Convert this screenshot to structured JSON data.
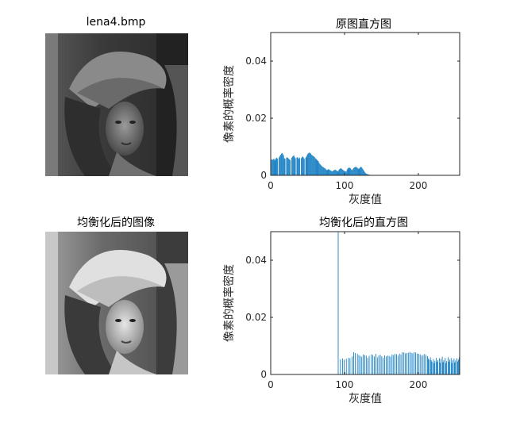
{
  "figure": {
    "subplots": [
      {
        "id": "img1",
        "title": "lena4.bmp",
        "kind": "image",
        "image": "lena-grayscale-photo"
      },
      {
        "id": "hist1",
        "title": "原图直方图",
        "kind": "histogram"
      },
      {
        "id": "img2",
        "title": "均衡化后的图像",
        "kind": "image",
        "image": "lena-equalized-photo"
      },
      {
        "id": "hist2",
        "title": "均衡化后的直方图",
        "kind": "histogram"
      }
    ]
  },
  "chart_data": [
    {
      "type": "bar",
      "title": "原图直方图",
      "xlabel": "灰度值",
      "ylabel": "像素的概率密度",
      "xlim": [
        0,
        256
      ],
      "ylim": [
        0,
        0.05
      ],
      "xticks": [
        "0",
        "100",
        "200"
      ],
      "yticks": [
        "0",
        "0.02",
        "0.04"
      ],
      "bar_color": "#0072BD",
      "x": [
        0,
        1,
        2,
        3,
        4,
        5,
        6,
        7,
        8,
        9,
        10,
        11,
        12,
        13,
        14,
        15,
        16,
        17,
        18,
        19,
        20,
        21,
        22,
        23,
        24,
        25,
        26,
        27,
        28,
        29,
        30,
        31,
        32,
        33,
        34,
        35,
        36,
        37,
        38,
        39,
        40,
        41,
        42,
        43,
        44,
        45,
        46,
        47,
        48,
        49,
        50,
        51,
        52,
        53,
        54,
        55,
        56,
        57,
        58,
        59,
        60,
        61,
        62,
        63,
        64,
        65,
        66,
        67,
        68,
        69,
        70,
        71,
        72,
        73,
        74,
        75,
        76,
        77,
        78,
        79,
        80,
        81,
        82,
        83,
        84,
        85,
        86,
        87,
        88,
        89,
        90,
        91,
        92,
        93,
        94,
        95,
        96,
        97,
        98,
        99,
        100,
        101,
        102,
        103,
        104,
        105,
        106,
        107,
        108,
        109,
        110,
        111,
        112,
        113,
        114,
        115,
        116,
        117,
        118,
        119,
        120,
        121,
        122,
        123,
        124,
        125,
        126,
        127,
        128,
        129,
        130,
        131,
        132,
        133,
        134,
        135,
        136,
        137,
        138,
        139,
        140
      ],
      "values": [
        0.0055,
        0.0056,
        0.0054,
        0.0057,
        0.0058,
        0.0052,
        0.0057,
        0.006,
        0.0062,
        0.0058,
        0.0,
        0.0063,
        0.0068,
        0.0072,
        0.0076,
        0.0078,
        0.0074,
        0.007,
        0.006,
        0.0058,
        0.0,
        0.0062,
        0.0063,
        0.0061,
        0.0058,
        0.0056,
        0.0054,
        0.0,
        0.0062,
        0.0066,
        0.0068,
        0.007,
        0.0064,
        0.006,
        0.0,
        0.0062,
        0.0064,
        0.006,
        0.0058,
        0.0062,
        0.0,
        0.006,
        0.0064,
        0.0066,
        0.0062,
        0.0058,
        0.0,
        0.0062,
        0.0066,
        0.0072,
        0.0076,
        0.0078,
        0.008,
        0.0078,
        0.0076,
        0.0072,
        0.007,
        0.0068,
        0.0066,
        0.0064,
        0.006,
        0.0058,
        0.0055,
        0.0052,
        0.005,
        0.0045,
        0.004,
        0.0038,
        0.0035,
        0.0032,
        0.003,
        0.0028,
        0.0026,
        0.0025,
        0.0022,
        0.002,
        0.0018,
        0.002,
        0.0022,
        0.002,
        0.0018,
        0.0017,
        0.0015,
        0.0014,
        0.0016,
        0.0018,
        0.0019,
        0.002,
        0.0018,
        0.0016,
        0.0015,
        0.0014,
        0.002,
        0.0022,
        0.0024,
        0.0025,
        0.0022,
        0.002,
        0.0018,
        0.0016,
        0.0015,
        0.0014,
        0.0013,
        0.002,
        0.0024,
        0.0026,
        0.0027,
        0.0026,
        0.0024,
        0.002,
        0.0018,
        0.0022,
        0.0026,
        0.0028,
        0.0029,
        0.003,
        0.0028,
        0.0026,
        0.0024,
        0.0022,
        0.0026,
        0.0028,
        0.003,
        0.0028,
        0.0024,
        0.002,
        0.0016,
        0.0012,
        0.0008,
        0.0006,
        0.0005,
        0.0004,
        0.0003,
        0.0002,
        0.0002,
        0.0001,
        0.0001,
        0.0001,
        0.0,
        0.0,
        0.0
      ]
    },
    {
      "type": "bar",
      "title": "均衡化后的直方图",
      "xlabel": "灰度值",
      "ylabel": "像素的概率密度",
      "xlim": [
        0,
        256
      ],
      "ylim": [
        0,
        0.05
      ],
      "xticks": [
        "0",
        "100",
        "200"
      ],
      "yticks": [
        "0",
        "0.02",
        "0.04"
      ],
      "bar_color": "#0072BD",
      "x": [
        91,
        94,
        97,
        99,
        102,
        105,
        107,
        110,
        112,
        114,
        117,
        119,
        121,
        123,
        125,
        127,
        129,
        131,
        133,
        136,
        138,
        140,
        142,
        144,
        146,
        148,
        150,
        152,
        154,
        156,
        158,
        160,
        162,
        164,
        166,
        168,
        170,
        172,
        174,
        176,
        178,
        180,
        182,
        184,
        186,
        188,
        190,
        192,
        194,
        196,
        198,
        200,
        202,
        204,
        206,
        208,
        210,
        212,
        213,
        214,
        216,
        217,
        218,
        220,
        221,
        222,
        224,
        225,
        226,
        228,
        229,
        230,
        232,
        233,
        234,
        236,
        237,
        238,
        240,
        241,
        242,
        244,
        245,
        246,
        248,
        249,
        250,
        252,
        253,
        254,
        255
      ],
      "values": [
        0.0498,
        0.0053,
        0.0056,
        0.0052,
        0.0055,
        0.0058,
        0.0057,
        0.0063,
        0.0078,
        0.0075,
        0.0072,
        0.0068,
        0.0065,
        0.0062,
        0.007,
        0.0068,
        0.0066,
        0.0058,
        0.0065,
        0.007,
        0.0068,
        0.0063,
        0.0072,
        0.006,
        0.0066,
        0.0069,
        0.0064,
        0.0058,
        0.0067,
        0.0063,
        0.0066,
        0.0065,
        0.0062,
        0.007,
        0.0068,
        0.0072,
        0.0071,
        0.0066,
        0.0073,
        0.007,
        0.0078,
        0.0077,
        0.0074,
        0.0075,
        0.0076,
        0.0079,
        0.0076,
        0.0074,
        0.0078,
        0.0077,
        0.0073,
        0.0072,
        0.007,
        0.0066,
        0.0068,
        0.0072,
        0.0068,
        0.0064,
        0.0056,
        0.0052,
        0.006,
        0.005,
        0.0045,
        0.0054,
        0.004,
        0.0048,
        0.0058,
        0.0044,
        0.005,
        0.0057,
        0.0041,
        0.0055,
        0.0062,
        0.0043,
        0.005,
        0.0058,
        0.004,
        0.0047,
        0.006,
        0.0045,
        0.0052,
        0.0058,
        0.004,
        0.005,
        0.0056,
        0.0042,
        0.0049,
        0.0057,
        0.0046,
        0.0052,
        0.006
      ]
    }
  ]
}
